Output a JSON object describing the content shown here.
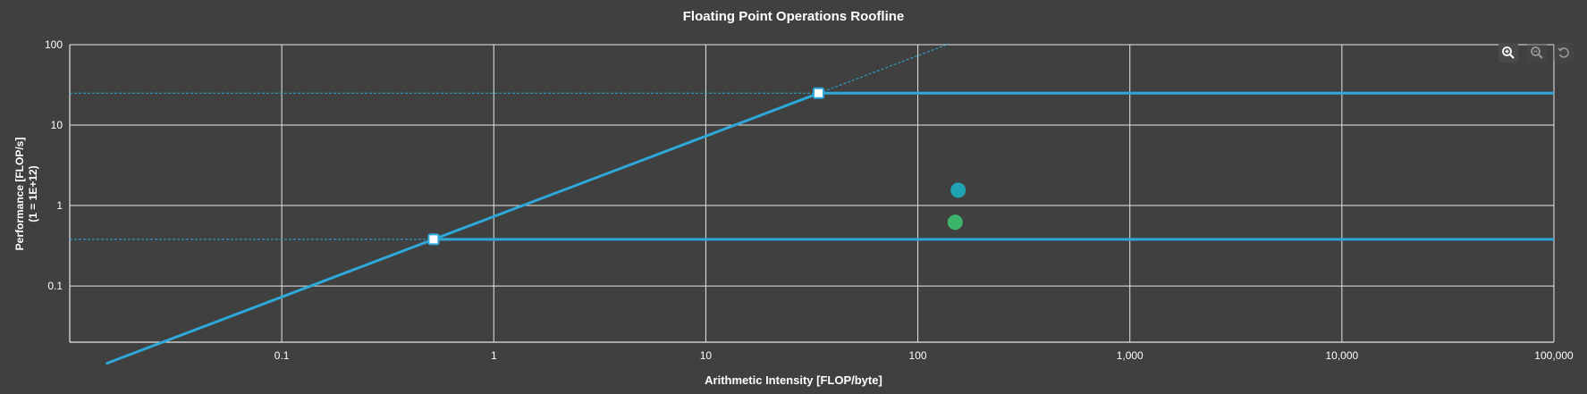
{
  "chart_data": {
    "type": "line",
    "title": "Floating Point Operations Roofline",
    "xlabel": "Arithmetic Intensity [FLOP/byte]",
    "ylabel_lines": [
      "Performance [FLOP/s]",
      "(1 = 1E+12)"
    ],
    "x_scale": "log",
    "y_scale": "log",
    "xlim": [
      0.01,
      100000
    ],
    "ylim": [
      0.02,
      100
    ],
    "x_ticks": [
      {
        "value": 0.1,
        "label": "0.1"
      },
      {
        "value": 1,
        "label": "1"
      },
      {
        "value": 10,
        "label": "10"
      },
      {
        "value": 100,
        "label": "100"
      },
      {
        "value": 1000,
        "label": "1,000"
      },
      {
        "value": 10000,
        "label": "10,000"
      },
      {
        "value": 100000,
        "label": "100,000"
      }
    ],
    "y_ticks": [
      {
        "value": 0.1,
        "label": "0.1"
      },
      {
        "value": 1,
        "label": "1"
      },
      {
        "value": 10,
        "label": "10"
      },
      {
        "value": 100,
        "label": "100"
      }
    ],
    "grid": true,
    "rooflines": [
      {
        "peak": 25,
        "ridge_x": 34,
        "color": "#2ea8d8"
      },
      {
        "peak": 0.38,
        "ridge_x": 0.52,
        "color": "#2ea8d8"
      }
    ],
    "bandwidth_line": {
      "slope_coeff": 0.73,
      "x_start": 0.015,
      "solid_end_x": 34,
      "dashed_end_x": 140,
      "color": "#2ea8d8"
    },
    "points": [
      {
        "x": 155,
        "y": 1.55,
        "color": "#1fa3b2"
      },
      {
        "x": 150,
        "y": 0.62,
        "color": "#3cb56a"
      }
    ],
    "background": "#404040",
    "grid_color": "#e6e6e6"
  },
  "toolbar": {
    "zoom_in_icon": "zoom-in-icon",
    "zoom_out_icon": "zoom-out-icon",
    "reset_icon": "reset-icon"
  }
}
